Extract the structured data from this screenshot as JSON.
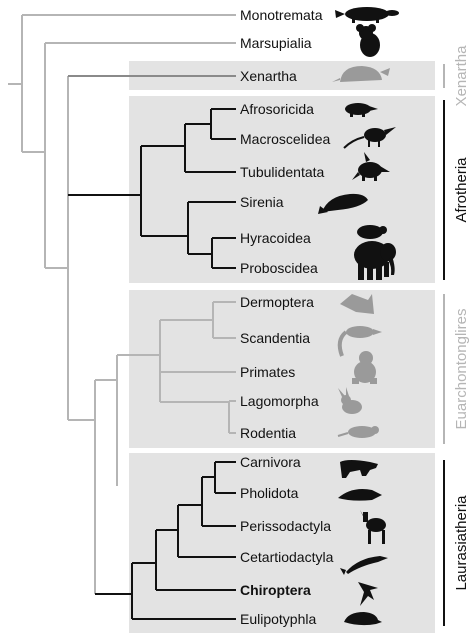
{
  "colors": {
    "black": "#111111",
    "gray": "#b5b5b5",
    "darkgray": "#8a8a8a",
    "box": "#e3e3e3",
    "silhouette_black": "#111111",
    "silhouette_gray": "#9a9a9a"
  },
  "groups": [
    {
      "name": "Xenartha",
      "color": "#b5b5b5"
    },
    {
      "name": "Afrotheria",
      "color": "#111111"
    },
    {
      "name": "Euarchontonglires",
      "color": "#b5b5b5"
    },
    {
      "name": "Laurasiatheria",
      "color": "#111111"
    }
  ],
  "taxa": [
    {
      "name": "Monotremata",
      "animal": "platypus-icon",
      "bold": false
    },
    {
      "name": "Marsupialia",
      "animal": "koala-icon",
      "bold": false
    },
    {
      "name": "Xenartha",
      "animal": "armadillo-icon",
      "bold": false
    },
    {
      "name": "Afrosoricida",
      "animal": "tenrec-icon",
      "bold": false
    },
    {
      "name": "Macroscelidea",
      "animal": "elephant-shrew-icon",
      "bold": false
    },
    {
      "name": "Tubulidentata",
      "animal": "aardvark-icon",
      "bold": false
    },
    {
      "name": "Sirenia",
      "animal": "manatee-icon",
      "bold": false
    },
    {
      "name": "Hyracoidea",
      "animal": "hyrax-icon",
      "bold": false
    },
    {
      "name": "Proboscidea",
      "animal": "elephant-icon",
      "bold": false
    },
    {
      "name": "Dermoptera",
      "animal": "colugo-icon",
      "bold": false
    },
    {
      "name": "Scandentia",
      "animal": "treeshrew-icon",
      "bold": false
    },
    {
      "name": "Primates",
      "animal": "monkey-icon",
      "bold": false
    },
    {
      "name": "Lagomorpha",
      "animal": "rabbit-icon",
      "bold": false
    },
    {
      "name": "Rodentia",
      "animal": "rodent-icon",
      "bold": false
    },
    {
      "name": "Carnivora",
      "animal": "hyena-icon",
      "bold": false
    },
    {
      "name": "Pholidota",
      "animal": "pangolin-icon",
      "bold": false
    },
    {
      "name": "Perissodactyla",
      "animal": "zebra-icon",
      "bold": false
    },
    {
      "name": "Cetartiodactyla",
      "animal": "dolphin-icon",
      "bold": false
    },
    {
      "name": "Chiroptera",
      "animal": "bat-icon",
      "bold": true
    },
    {
      "name": "Eulipotyphla",
      "animal": "hedgehog-icon",
      "bold": false
    }
  ]
}
